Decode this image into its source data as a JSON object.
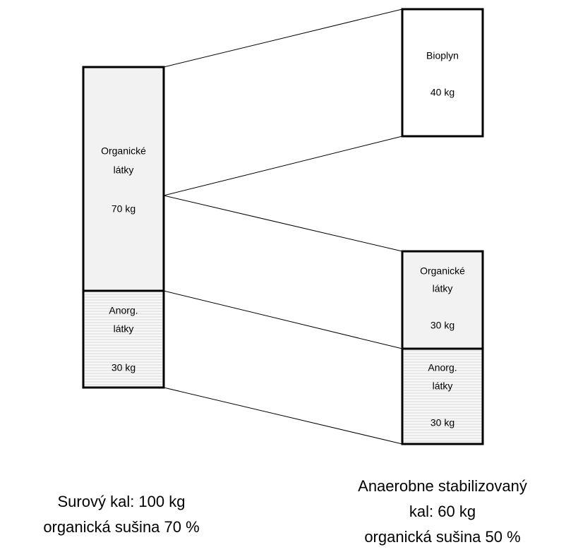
{
  "nodes": [
    {
      "label": [
        "Organické",
        "látky"
      ],
      "value": "70 kg"
    },
    {
      "label": [
        "Anorg.",
        "látky"
      ],
      "value": "30 kg"
    },
    {
      "label": [
        "Bioplyn"
      ],
      "value": "40 kg"
    },
    {
      "label": [
        "Organické",
        "látky"
      ],
      "value": "30 kg"
    },
    {
      "label": [
        "Anorg.",
        "látky"
      ],
      "value": "30 kg"
    }
  ],
  "captions": [
    [
      "Surový kal: 100 kg",
      "organická sušina 70 %"
    ],
    [
      "Anaerobne stabilizovaný",
      "kal: 60 kg",
      "organická sušina 50 %"
    ]
  ]
}
